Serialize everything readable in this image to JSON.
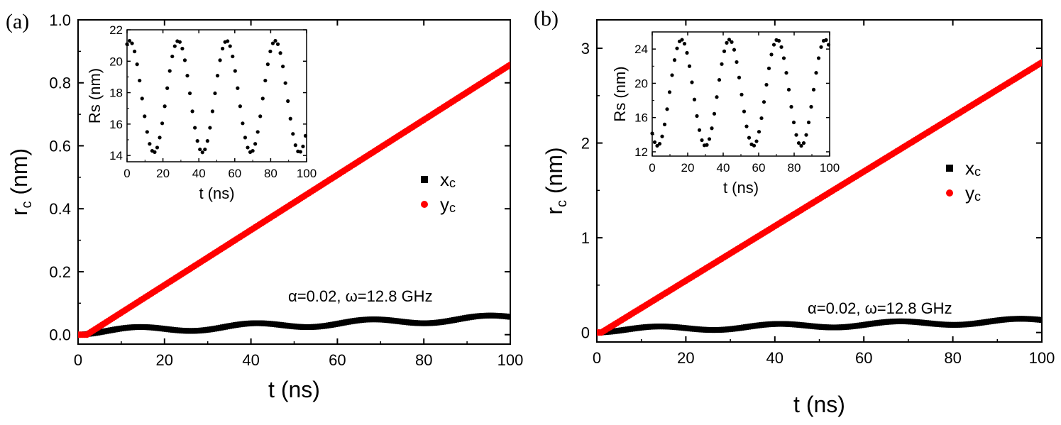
{
  "chart_data": [
    {
      "panel_label": "(a)",
      "type": "scatter",
      "xlabel": "t (ns)",
      "ylabel_main": "r",
      "ylabel_sub": "c",
      "ylabel_unit": " (nm)",
      "xlim": [
        0,
        100
      ],
      "ylim": [
        -0.03,
        1.0
      ],
      "xticks": [
        "0",
        "20",
        "40",
        "60",
        "80",
        "100"
      ],
      "yticks": [
        "0.0",
        "0.2",
        "0.4",
        "0.6",
        "0.8",
        "1.0"
      ],
      "annotation": "α=0.02, ω=12.8 GHz",
      "legend": [
        {
          "label_main": "x",
          "label_sub": "c",
          "color": "#000000",
          "marker": "square"
        },
        {
          "label_main": "y",
          "label_sub": "c",
          "color": "#ff0000",
          "marker": "circle"
        }
      ],
      "series": [
        {
          "name": "x_c",
          "color": "#000000",
          "marker": "square",
          "model": {
            "kind": "wobble",
            "slope": 0.00045,
            "amp": 0.009,
            "period": 27,
            "phase": 0
          }
        },
        {
          "name": "y_c",
          "color": "#ff0000",
          "marker": "circle",
          "model": {
            "kind": "linear",
            "start": 2,
            "slope": 0.00875
          }
        }
      ],
      "inset": {
        "xlabel": "t (ns)",
        "ylabel": "Rs (nm)",
        "xlim": [
          0,
          100
        ],
        "ylim": [
          13.6,
          22
        ],
        "xticks": [
          "0",
          "20",
          "40",
          "60",
          "80",
          "100"
        ],
        "yticks": [
          "14",
          "16",
          "18",
          "20",
          "22"
        ],
        "series": {
          "name": "Rs",
          "color": "#000000",
          "model": {
            "kind": "cosine",
            "mean": 17.75,
            "amp": 3.55,
            "period": 27,
            "peak_t": 1.5
          }
        }
      }
    },
    {
      "panel_label": "(b)",
      "type": "scatter",
      "xlabel": "t (ns)",
      "ylabel_main": "r",
      "ylabel_sub": "c",
      "ylabel_unit": " (nm)",
      "xlim": [
        0,
        100
      ],
      "ylim": [
        -0.1,
        3.3
      ],
      "xticks": [
        "0",
        "20",
        "40",
        "60",
        "80",
        "100"
      ],
      "yticks": [
        "0",
        "1",
        "2",
        "3"
      ],
      "annotation": "α=0.02, ω=12.8 GHz",
      "legend": [
        {
          "label_main": "x",
          "label_sub": "c",
          "color": "#000000",
          "marker": "square"
        },
        {
          "label_main": "y",
          "label_sub": "c",
          "color": "#ff0000",
          "marker": "circle"
        }
      ],
      "series": [
        {
          "name": "x_c",
          "color": "#000000",
          "marker": "square",
          "model": {
            "kind": "wobble",
            "slope": 0.001,
            "amp": 0.025,
            "period": 27,
            "phase": 0
          }
        },
        {
          "name": "y_c",
          "color": "#ff0000",
          "marker": "circle",
          "model": {
            "kind": "linear",
            "start": 1,
            "slope": 0.0288
          }
        }
      ],
      "inset": {
        "xlabel": "t (ns)",
        "ylabel": "Rs (nm)",
        "xlim": [
          0,
          100
        ],
        "ylim": [
          11.5,
          26
        ],
        "xticks": [
          "0",
          "20",
          "40",
          "60",
          "80",
          "100"
        ],
        "yticks": [
          "12",
          "16",
          "20",
          "24"
        ],
        "series": {
          "name": "Rs",
          "color": "#000000",
          "model": {
            "kind": "cosine",
            "mean": 18.9,
            "amp": 6.2,
            "period": 27,
            "peak_t": -10.5
          }
        }
      }
    }
  ]
}
